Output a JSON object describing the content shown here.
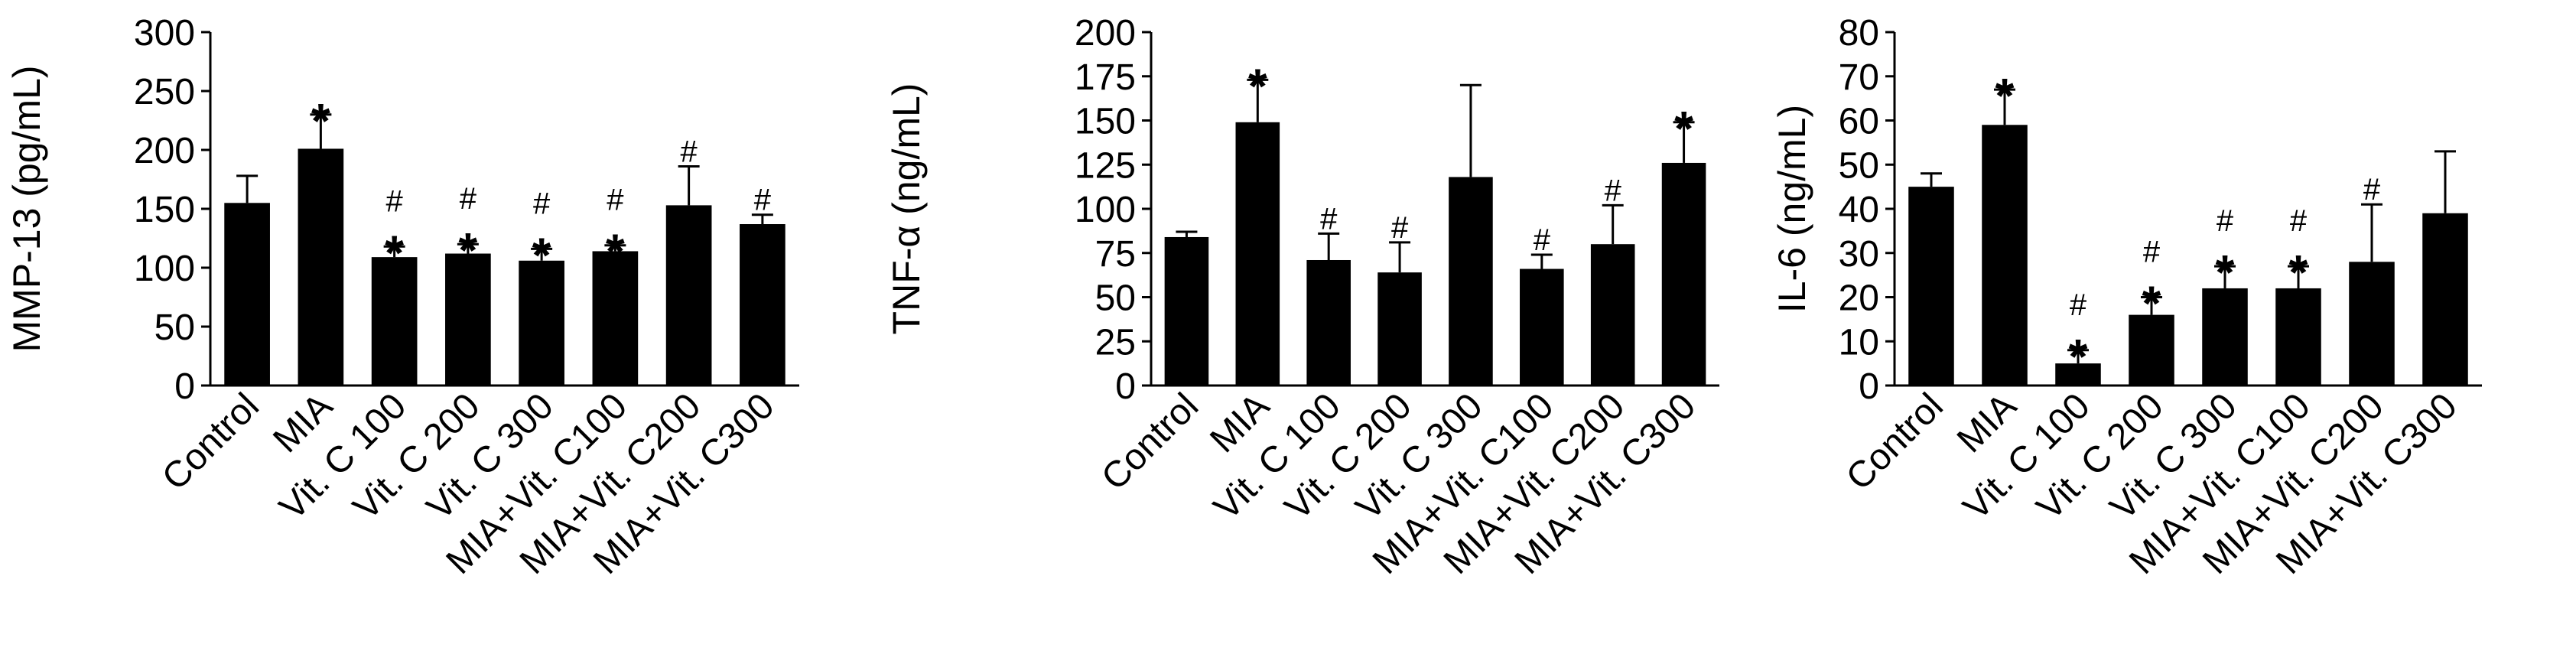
{
  "chart_data": [
    {
      "type": "bar",
      "title": "",
      "xlabel": "",
      "ylabel": "MMP-13 (pg/mL)",
      "ylim": [
        0,
        300
      ],
      "yticks": [
        0,
        50,
        100,
        150,
        200,
        250,
        300
      ],
      "categories": [
        "Control",
        "MIA",
        "Vit. C 100",
        "Vit. C 200",
        "Vit. C 300",
        "MIA+Vit. C100",
        "MIA+Vit. C200",
        "MIA+Vit. C300"
      ],
      "values": [
        155,
        201,
        109,
        112,
        106,
        114,
        153,
        137
      ],
      "errors": [
        23,
        29,
        9,
        8,
        10,
        5,
        33,
        8
      ],
      "annotations": [
        [],
        [
          "*"
        ],
        [
          "#",
          "*"
        ],
        [
          "#",
          "*"
        ],
        [
          "#",
          "*"
        ],
        [
          "#",
          "*"
        ],
        [
          "#"
        ],
        [
          "#"
        ]
      ],
      "grid": false,
      "bar_color": "#000000"
    },
    {
      "type": "bar",
      "title": "",
      "xlabel": "",
      "ylabel": "TNF-α (ng/mL)",
      "ylim": [
        0,
        200
      ],
      "yticks": [
        0,
        25,
        50,
        75,
        100,
        125,
        150,
        175,
        200
      ],
      "categories": [
        "Control",
        "MIA",
        "Vit. C 100",
        "Vit. C 200",
        "Vit. C 300",
        "MIA+Vit. C100",
        "MIA+Vit. C200",
        "MIA+Vit. C300"
      ],
      "values": [
        84,
        149,
        71,
        64,
        118,
        66,
        80,
        126
      ],
      "errors": [
        3,
        24,
        15,
        17,
        52,
        8,
        22,
        23
      ],
      "annotations": [
        [],
        [
          "*"
        ],
        [
          "#"
        ],
        [
          "#"
        ],
        [],
        [
          "#"
        ],
        [
          "#"
        ],
        [
          "*"
        ]
      ],
      "grid": false,
      "bar_color": "#000000"
    },
    {
      "type": "bar",
      "title": "",
      "xlabel": "",
      "ylabel": "IL-6 (ng/mL)",
      "ylim": [
        0,
        80
      ],
      "yticks": [
        0,
        10,
        20,
        30,
        40,
        50,
        60,
        70,
        80
      ],
      "categories": [
        "Control",
        "MIA",
        "Vit. C 100",
        "Vit. C 200",
        "Vit. C 300",
        "MIA+Vit. C100",
        "MIA+Vit. C200",
        "MIA+Vit. C300"
      ],
      "values": [
        45,
        59,
        5,
        16,
        22,
        22,
        28,
        39
      ],
      "errors": [
        3,
        8,
        3,
        4,
        5,
        5,
        13,
        14
      ],
      "annotations": [
        [],
        [
          "*"
        ],
        [
          "#",
          "*"
        ],
        [
          "#",
          "*"
        ],
        [
          "#",
          "*"
        ],
        [
          "#",
          "*"
        ],
        [
          "#"
        ],
        []
      ],
      "grid": false,
      "bar_color": "#000000"
    }
  ]
}
